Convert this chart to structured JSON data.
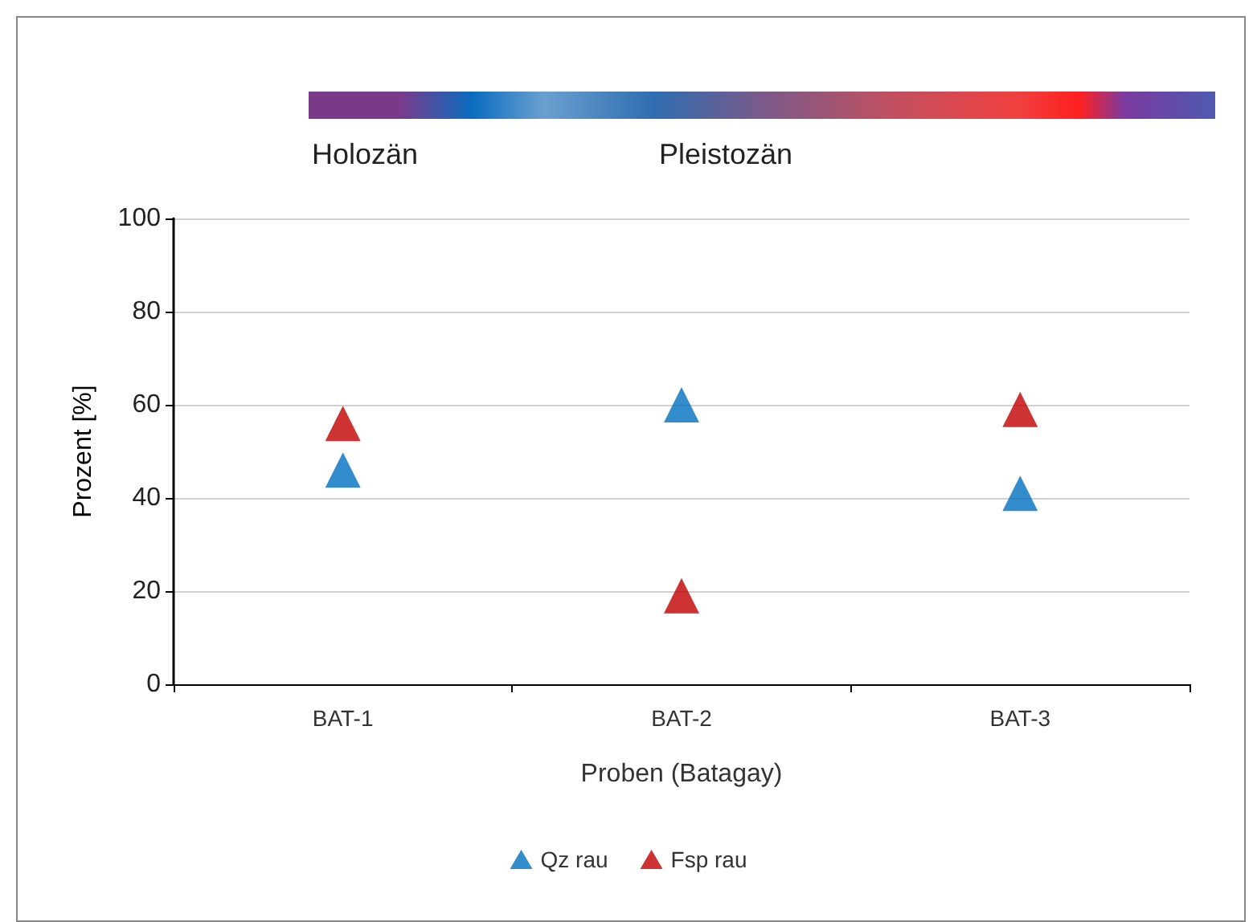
{
  "chart_data": {
    "type": "scatter",
    "xlabel": "Proben (Batagay)",
    "ylabel": "Prozent [%]",
    "categories": [
      "BAT-1",
      "BAT-2",
      "BAT-3"
    ],
    "series": [
      {
        "name": "Qz rau",
        "color": "#0070c0",
        "values": [
          46,
          60,
          41
        ]
      },
      {
        "name": "Fsp rau",
        "color": "#c00000",
        "values": [
          56,
          19,
          59
        ]
      }
    ],
    "ylim": [
      0,
      100
    ],
    "yticks": [
      0,
      20,
      40,
      60,
      80,
      100
    ],
    "grid": "y",
    "legend": "bottom",
    "marker": "triangle",
    "annotations": [
      "Holozän",
      "Pleistozän"
    ]
  }
}
